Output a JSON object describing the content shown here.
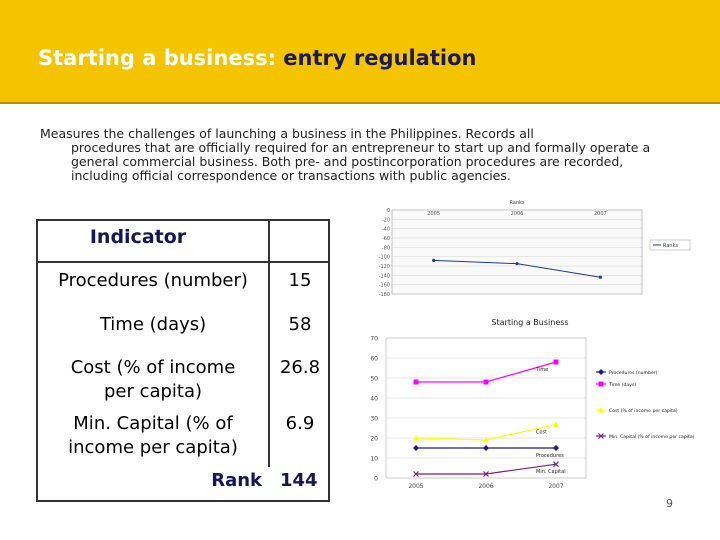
{
  "header": {
    "title_part1": "Starting a business:",
    "title_part2": " entry regulation",
    "band_color": "#f5c400"
  },
  "description": {
    "first_line": "Measures the challenges of launching a business in the Philippines. Records all",
    "rest": "procedures that are officially required for an entrepreneur to start up and formally operate a general commercial business. Both pre- and postincorporation procedures are recorded, including official correspondence or transactions with public agencies."
  },
  "table": {
    "header": "Indicator",
    "rows": [
      {
        "label": "Procedures (number)",
        "value": "15"
      },
      {
        "label": "Time (days)",
        "value": "58"
      },
      {
        "label": "Cost (% of income per capita)",
        "value": "26.8"
      },
      {
        "label": "Min. Capital (% of income per capita)",
        "value": "6.9"
      }
    ],
    "rank_label": "Rank",
    "rank_value": "144"
  },
  "chart_data": [
    {
      "type": "line",
      "title": "Ranks",
      "x": [
        "2005",
        "2006",
        "2007"
      ],
      "ylim": [
        -180,
        0
      ],
      "yticks": [
        0,
        -20,
        -40,
        -60,
        -80,
        -100,
        -120,
        -140,
        -160,
        -180
      ],
      "series": [
        {
          "name": "Ranks",
          "values": [
            -108,
            -115,
            -144
          ],
          "color": "#1f3a93"
        }
      ],
      "legend": "right",
      "grid": true
    },
    {
      "type": "line",
      "title": "Starting a Business",
      "x": [
        "2005",
        "2006",
        "2007"
      ],
      "ylim": [
        0,
        70
      ],
      "yticks": [
        0,
        10,
        20,
        30,
        40,
        50,
        60,
        70
      ],
      "series": [
        {
          "name": "Procedures (number)",
          "values": [
            15,
            15,
            15
          ],
          "color": "#1a1a8c",
          "marker": "diamond",
          "label": "Procedures"
        },
        {
          "name": "Time (days)",
          "values": [
            48,
            48,
            58
          ],
          "color": "#ff00ff",
          "marker": "square",
          "label": "Time"
        },
        {
          "name": "Cost (% of income per capita)",
          "values": [
            20,
            19,
            26.8
          ],
          "color": "#ffff00",
          "marker": "triangle",
          "label": "Cost"
        },
        {
          "name": "Min. Capital (% of income per capita)",
          "values": [
            2,
            2,
            6.9
          ],
          "color": "#7a1f7a",
          "marker": "x",
          "label": "Min. Capital"
        }
      ],
      "legend": "right",
      "grid": true
    }
  ],
  "page_number": "9"
}
